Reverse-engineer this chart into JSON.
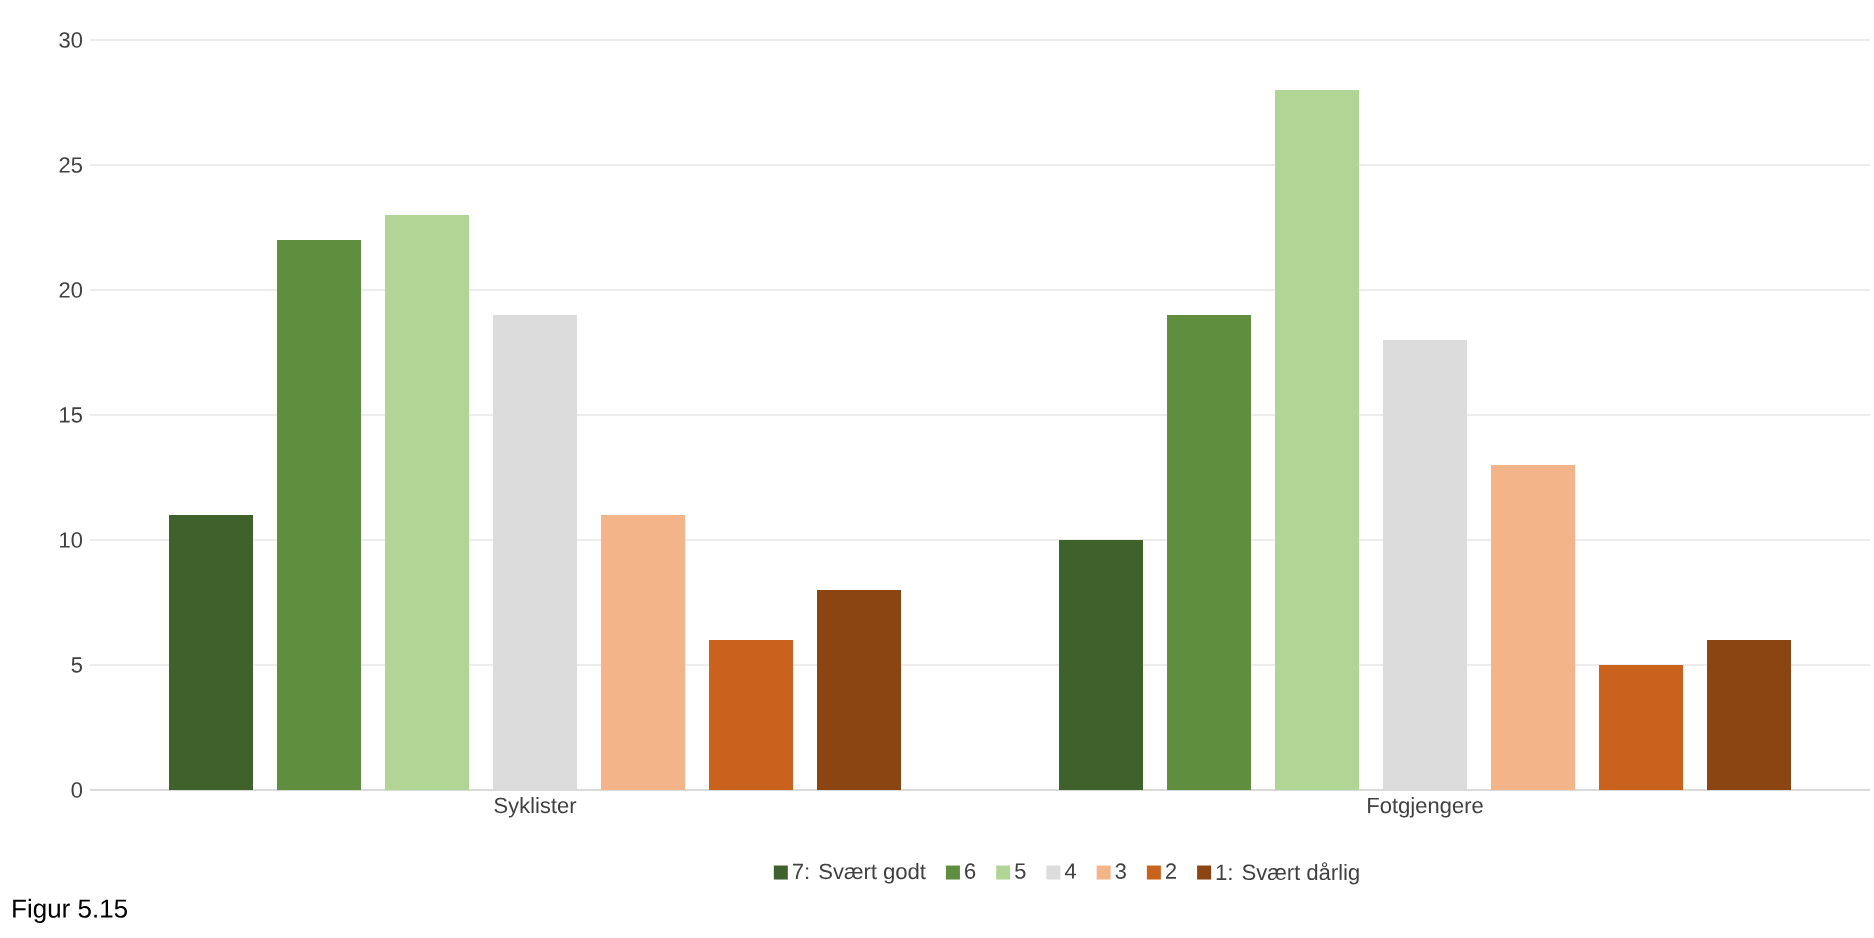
{
  "chart_data": {
    "type": "bar",
    "categories": [
      "Syklister",
      "Fotgjengere"
    ],
    "series": [
      {
        "name": "7: Svært godt",
        "color": "#3f612b",
        "values": [
          11,
          10
        ]
      },
      {
        "name": "6",
        "color": "#5f8f3e",
        "values": [
          22,
          19
        ]
      },
      {
        "name": "5",
        "color": "#b1d595",
        "values": [
          23,
          28
        ]
      },
      {
        "name": "4",
        "color": "#dcdcdc",
        "values": [
          19,
          18
        ]
      },
      {
        "name": "3",
        "color": "#f4b48a",
        "values": [
          11,
          13
        ]
      },
      {
        "name": "2",
        "color": "#c8621c",
        "values": [
          6,
          5
        ]
      },
      {
        "name": "1: Svært dårlig",
        "color": "#8b4513",
        "values": [
          8,
          6
        ]
      }
    ],
    "ylim": [
      0,
      30
    ],
    "yticks": [
      0,
      5,
      10,
      15,
      20,
      25,
      30
    ],
    "grid": "y",
    "legend": "bottom",
    "annotations": [
      "Figur 5.15"
    ]
  }
}
